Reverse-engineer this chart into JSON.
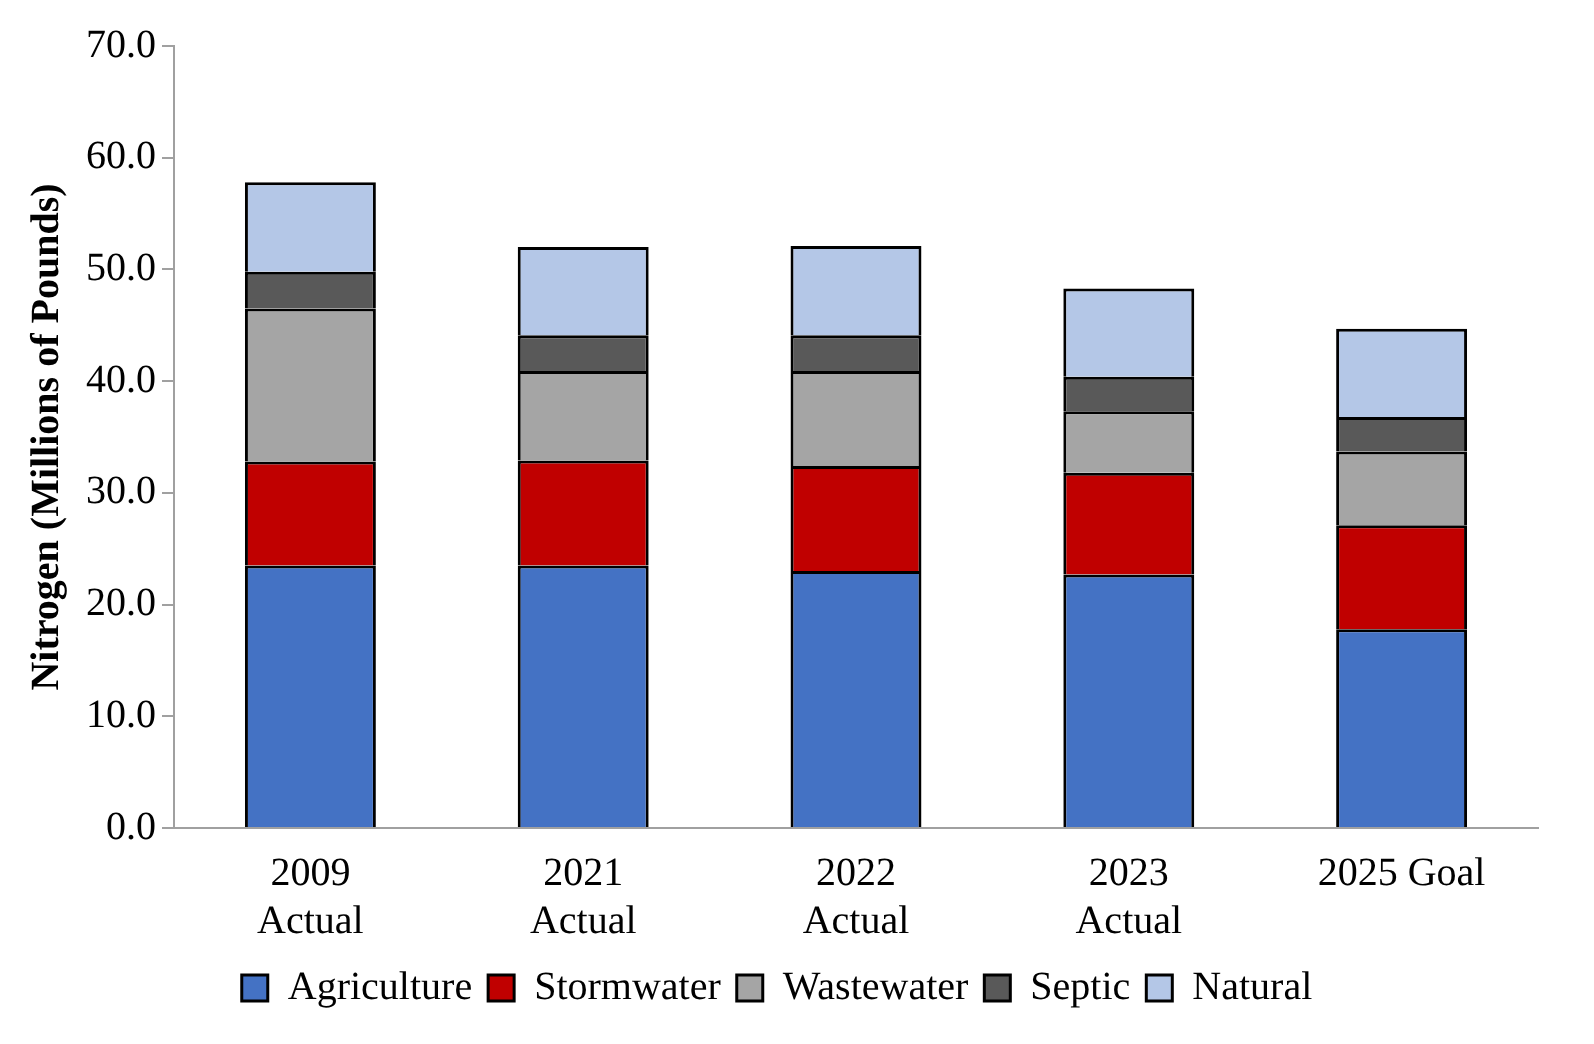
{
  "chart_data": {
    "type": "bar",
    "stacked": true,
    "ylabel": "Nitrogen (Millions of Pounds)",
    "categories": [
      "2009\nActual",
      "2021\nActual",
      "2022\nActual",
      "2023\nActual",
      "2025 Goal"
    ],
    "series": [
      {
        "name": "Agriculture",
        "color": "#4472c4",
        "values": [
          23.5,
          23.5,
          23.0,
          22.7,
          17.8
        ]
      },
      {
        "name": "Stormwater",
        "color": "#c00000",
        "values": [
          9.3,
          9.4,
          9.4,
          9.1,
          9.3
        ]
      },
      {
        "name": "Wastewater",
        "color": "#a5a5a5",
        "values": [
          13.7,
          8.0,
          8.5,
          5.5,
          6.6
        ]
      },
      {
        "name": "Septic",
        "color": "#595959",
        "values": [
          3.3,
          3.2,
          3.2,
          3.1,
          3.1
        ]
      },
      {
        "name": "Natural",
        "color": "#b4c7e7",
        "values": [
          8.0,
          7.9,
          8.0,
          7.9,
          7.9
        ]
      }
    ],
    "ylim": [
      0,
      70
    ],
    "yticks": [
      {
        "value": 0,
        "label": "0.0"
      },
      {
        "value": 10,
        "label": "10.0"
      },
      {
        "value": 20,
        "label": "20.0"
      },
      {
        "value": 30,
        "label": "30.0"
      },
      {
        "value": 40,
        "label": "40.0"
      },
      {
        "value": 50,
        "label": "50.0"
      },
      {
        "value": 60,
        "label": "60.0"
      },
      {
        "value": 70,
        "label": "70.0"
      }
    ],
    "grid": false,
    "legend": "bottom"
  }
}
